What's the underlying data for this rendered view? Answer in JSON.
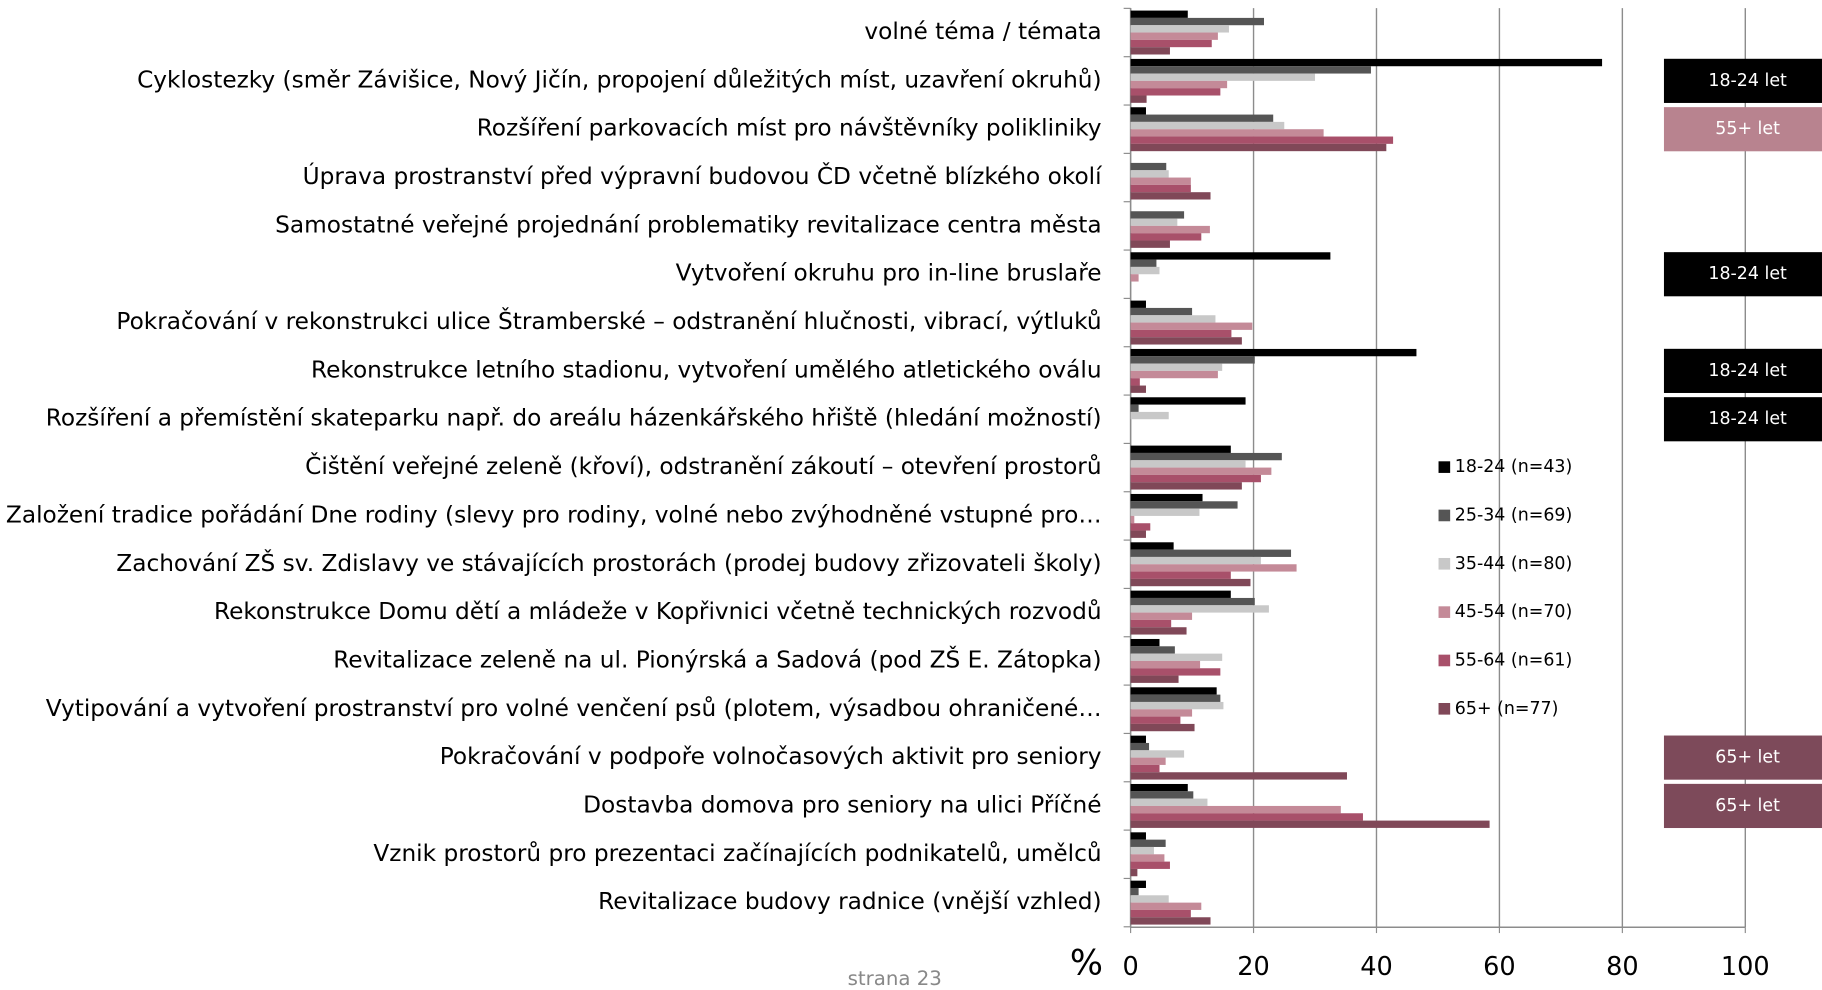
{
  "chart_data": {
    "type": "bar",
    "orientation": "horizontal",
    "categories": [
      "volné téma / témata",
      "Cyklostezky (směr Závišice, Nový Jičín, propojení důležitých míst, uzavření okruhů)",
      "Rozšíření parkovacích míst pro návštěvníky polikliniky",
      "Úprava prostranství před výpravní budovou ČD včetně blízkého okolí",
      "Samostatné veřejné projednání problematiky revitalizace centra města",
      "Vytvoření okruhu pro in-line bruslaře",
      "Pokračování v rekonstrukci ulice Štramberské – odstranění hlučnosti, vibrací, výtluků",
      "Rekonstrukce letního stadionu, vytvoření umělého atletického oválu",
      "Rozšíření a přemístění skateparku např. do areálu házenkářského hřiště (hledání možností)",
      "Čištění veřejné zeleně (křoví), odstranění zákoutí – otevření prostorů",
      "Založení tradice pořádání Dne rodiny (slevy pro rodiny, volné nebo zvýhodněné vstupné pro…",
      "Zachování ZŠ sv. Zdislavy ve stávajících prostorách (prodej budovy zřizovateli školy)",
      "Rekonstrukce Domu dětí a mládeže v Kopřivnici včetně technických rozvodů",
      "Revitalizace zeleně na ul. Pionýrská a Sadová (pod ZŠ E. Zátopka)",
      "Vytipování a vytvoření prostranství pro volné venčení psů (plotem, výsadbou ohraničené…",
      "Pokračování v podpoře volnočasových aktivit pro seniory",
      "Dostavba domova pro seniory na ulici Příčné",
      "Vznik prostorů pro prezentaci začínajících podnikatelů, umělců",
      "Revitalizace budovy radnice (vnější vzhled)"
    ],
    "series": [
      {
        "name": "18-24 (n=43)",
        "color": "#000000",
        "values": [
          9.3,
          76.7,
          2.5,
          0,
          0,
          32.5,
          2.5,
          46.5,
          18.7,
          16.3,
          11.7,
          7,
          16.3,
          4.7,
          14,
          2.5,
          9.3,
          2.5,
          2.5
        ]
      },
      {
        "name": "25-34 (n=69)",
        "color": "#555555",
        "values": [
          21.7,
          39.1,
          23.2,
          5.8,
          8.7,
          4.2,
          10,
          20.2,
          1.3,
          24.6,
          17.4,
          26.1,
          20.2,
          7.2,
          14.6,
          3,
          10.2,
          5.7,
          1.3
        ]
      },
      {
        "name": "35-44 (n=80)",
        "color": "#c8c8c8",
        "values": [
          16,
          30,
          25,
          6.2,
          7.6,
          4.7,
          13.8,
          14.9,
          6.2,
          18.7,
          11.2,
          21.2,
          22.5,
          14.9,
          15.1,
          8.7,
          12.5,
          3.8,
          6.2
        ]
      },
      {
        "name": "45-54 (n=70)",
        "color": "#c48a98",
        "values": [
          14.2,
          15.7,
          31.4,
          9.8,
          12.9,
          1.3,
          19.8,
          14.2,
          0,
          22.9,
          0.6,
          27,
          10,
          11.3,
          10,
          5.7,
          34.2,
          5.5,
          11.5
        ]
      },
      {
        "name": "55-64 (n=61)",
        "color": "#a8506a",
        "values": [
          13.2,
          14.6,
          42.7,
          9.8,
          11.5,
          0,
          16.4,
          1.5,
          0,
          21.2,
          3.2,
          16.3,
          6.6,
          14.6,
          8.1,
          4.7,
          37.8,
          6.4,
          9.8
        ]
      },
      {
        "name": "65+ (n=77)",
        "color": "#804858",
        "values": [
          6.4,
          2.6,
          41.6,
          13,
          6.4,
          0,
          18.1,
          2.5,
          0,
          18.1,
          2.5,
          19.5,
          9.1,
          7.8,
          10.4,
          35.2,
          58.4,
          1.1,
          13
        ]
      }
    ],
    "xlim": [
      0,
      100
    ],
    "xticks": [
      0,
      20,
      40,
      60,
      80,
      100
    ],
    "grid": true,
    "x_axis_label": "%",
    "highlights": [
      null,
      "18-24 let",
      "55+ let",
      null,
      null,
      "18-24 let",
      null,
      "18-24 let",
      "18-24 let",
      null,
      null,
      null,
      null,
      null,
      null,
      "65+ let",
      "65+ let",
      null,
      null
    ],
    "highlight_colors": [
      null,
      "#000000",
      "#b8838f",
      null,
      null,
      "#000000",
      null,
      "#000000",
      "#000000",
      null,
      null,
      null,
      null,
      null,
      null,
      "#7d4a5a",
      "#7d4a5a",
      null,
      null
    ],
    "footer": "strana 23"
  }
}
